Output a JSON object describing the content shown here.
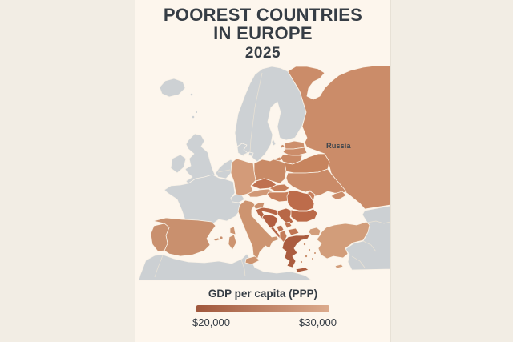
{
  "title": {
    "line1": "POOREST COUNTRIES",
    "line2": "IN EUROPE",
    "year": "2025"
  },
  "legend": {
    "title": "GDP per capita (PPP)",
    "min_label": "$20,000",
    "max_label": "$30,000",
    "gradient_start": "#a0573c",
    "gradient_end": "#dcab8d"
  },
  "map": {
    "label": "Russia",
    "label_color": "#3f464d",
    "border_color": "#f9f2e7",
    "line_color": "#ebe3d4",
    "sea_color": "#fdf6ed",
    "excluded_color": "#cdd1d4",
    "fills": {
      "iceland": "#cdd1d4",
      "scandinavia": "#cdd1d4",
      "denmark": "#cdd1d4",
      "denmark-island": "#cdd1d4",
      "uk": "#cdd1d4",
      "ireland": "#cdd1d4",
      "benelux": "#cdd1d4",
      "france": "#cdd1d4",
      "switzerland": "#cdd1d4",
      "north-africa": "#ccd0d3",
      "middle-east": "#ccd0d3",
      "gotland": "#cdd1d4",
      "shetland": "#cdd1d4",
      "faroe": "#cdd1d4",
      "russia": "#cb8c69",
      "kaliningrad": "#cb8c69",
      "crimea": "#cb8c69",
      "estonia": "#cd8f6c",
      "estonia-islands": "#cd8f6c",
      "latvia": "#cc8d6a",
      "lithuania": "#ca8a66",
      "belarus": "#c7845e",
      "ukraine": "#ca8b68",
      "moldova": "#c8805d",
      "poland": "#c98a66",
      "germany": "#d39b79",
      "czechia": "#bf7150",
      "slovakia": "#c67e5a",
      "austria": "#d19876",
      "hungary": "#c8805d",
      "slovenia": "#cb906d",
      "croatia": "#b66546",
      "bosnia": "#b25f42",
      "serbia": "#b86747",
      "montenegro": "#bc6f4f",
      "kosovo": "#c07452",
      "north-macedonia": "#c17553",
      "albania": "#c47b58",
      "romania": "#bd6c4b",
      "bulgaria": "#bb6a49",
      "greece": "#ab5c3f",
      "crete": "#ab5c3f",
      "aegean-islands": "#c9906e",
      "italy": "#cd9470",
      "sicily": "#cd9470",
      "sardinia": "#cd9470",
      "corsica": "#cd9470",
      "spain": "#c9906e",
      "portugal": "#c9906e",
      "balearics": "#c9906e",
      "turkey": "#d29d7a",
      "turkey-europe": "#d29d7a",
      "cyprus": "#d29d7a"
    }
  }
}
